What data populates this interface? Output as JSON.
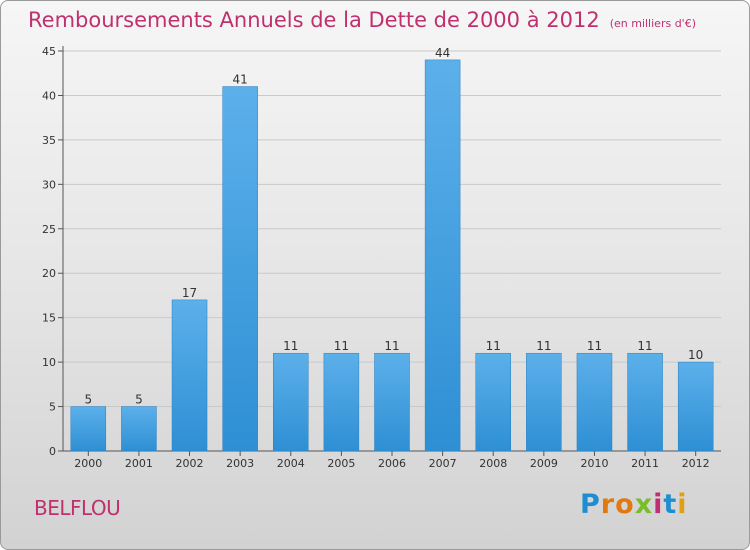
{
  "header": {
    "title": "Remboursements Annuels de la Dette de 2000 à 2012",
    "unit": "(en milliers d'€)"
  },
  "footer": {
    "commune": "BELFLOU",
    "brand_letters": [
      "P",
      "r",
      "o",
      "x",
      "i",
      "t",
      "i"
    ],
    "brand_colors": [
      "#1e8ed0",
      "#e07a10",
      "#e07a10",
      "#7abd2a",
      "#c0306f",
      "#1e8ed0",
      "#e0a010"
    ]
  },
  "chart_data": {
    "type": "bar",
    "title": "Remboursements Annuels de la Dette de 2000 à 2012",
    "subtitle": "(en milliers d'€)",
    "xlabel": "",
    "ylabel": "",
    "categories": [
      "2000",
      "2001",
      "2002",
      "2003",
      "2004",
      "2005",
      "2006",
      "2007",
      "2008",
      "2009",
      "2010",
      "2011",
      "2012"
    ],
    "values": [
      5,
      5,
      17,
      41,
      11,
      11,
      11,
      44,
      11,
      11,
      11,
      11,
      10
    ],
    "data_labels": [
      "5",
      "5",
      "17",
      "41",
      "11",
      "11",
      "11",
      "44",
      "11",
      "11",
      "11",
      "11",
      "10"
    ],
    "ylim": [
      0,
      45
    ],
    "yticks": [
      0,
      5,
      10,
      15,
      20,
      25,
      30,
      35,
      40,
      45
    ],
    "ytick_labels": [
      "0",
      "5",
      "10",
      "15",
      "20",
      "25",
      "30",
      "35",
      "40",
      "45"
    ],
    "grid": true,
    "bar_color": "#2e8fd4",
    "bar_color_light": "#5cb0ea"
  }
}
